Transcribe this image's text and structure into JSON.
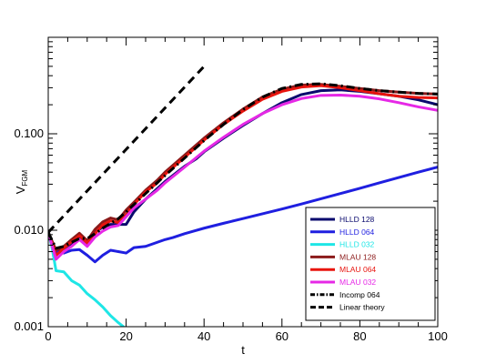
{
  "chart_data": {
    "type": "line",
    "xlabel": "t",
    "ylabel": "V",
    "ylabel_sub": "FGM",
    "x_scale": "linear",
    "y_scale": "log",
    "xlim": [
      0,
      100
    ],
    "ylim": [
      0.001,
      1.0
    ],
    "x_ticks": [
      0,
      20,
      40,
      60,
      80,
      100
    ],
    "x_tick_labels": [
      "0",
      "20",
      "40",
      "60",
      "80",
      "100"
    ],
    "y_ticks": [
      0.001,
      0.01,
      0.1
    ],
    "y_tick_labels": [
      "0.001",
      "0.010",
      "0.100"
    ],
    "grid": false,
    "legend_position": "lower-right",
    "series": [
      {
        "name": "HLLD 128",
        "color": "#0a0a6e",
        "dash": "solid",
        "width": 3,
        "x": [
          0,
          2,
          4,
          6,
          8,
          10,
          12,
          14,
          16,
          18,
          20,
          22,
          25,
          28,
          30,
          32,
          35,
          38,
          40,
          45,
          50,
          55,
          60,
          65,
          70,
          75,
          80,
          85,
          90,
          95,
          100
        ],
        "y": [
          0.0095,
          0.006,
          0.0062,
          0.0072,
          0.0082,
          0.0072,
          0.0095,
          0.0108,
          0.0115,
          0.0115,
          0.0115,
          0.0155,
          0.021,
          0.027,
          0.032,
          0.037,
          0.046,
          0.055,
          0.065,
          0.09,
          0.122,
          0.162,
          0.21,
          0.255,
          0.28,
          0.285,
          0.275,
          0.26,
          0.245,
          0.225,
          0.2
        ]
      },
      {
        "name": "HLLD 064",
        "color": "#1f1fe0",
        "dash": "solid",
        "width": 3,
        "x": [
          0,
          2,
          4,
          6,
          8,
          10,
          12,
          14,
          16,
          18,
          20,
          22,
          25,
          28,
          30,
          32,
          35,
          40,
          45,
          50,
          55,
          60,
          65,
          70,
          75,
          80,
          85,
          90,
          95,
          100
        ],
        "y": [
          0.0095,
          0.006,
          0.0058,
          0.0062,
          0.0063,
          0.0055,
          0.0047,
          0.0055,
          0.0062,
          0.006,
          0.0058,
          0.0066,
          0.0068,
          0.0075,
          0.008,
          0.0084,
          0.0092,
          0.0105,
          0.0118,
          0.0132,
          0.0148,
          0.0166,
          0.0187,
          0.0212,
          0.024,
          0.0272,
          0.031,
          0.0352,
          0.04,
          0.0452
        ]
      },
      {
        "name": "HLLD 032",
        "color": "#1ee6e6",
        "dash": "solid",
        "width": 3,
        "x": [
          0,
          1,
          2,
          4,
          6,
          8,
          10,
          12,
          14,
          16,
          18,
          20
        ],
        "y": [
          0.0095,
          0.0065,
          0.0038,
          0.0037,
          0.003,
          0.0027,
          0.0022,
          0.0019,
          0.0016,
          0.0013,
          0.0011,
          0.00095
        ]
      },
      {
        "name": "MLAU 128",
        "color": "#8b1a1a",
        "dash": "solid",
        "width": 3,
        "x": [
          0,
          2,
          4,
          6,
          8,
          10,
          12,
          14,
          16,
          18,
          20,
          22,
          25,
          28,
          30,
          35,
          40,
          45,
          50,
          55,
          60,
          65,
          70,
          75,
          80,
          85,
          90,
          95,
          100
        ],
        "y": [
          0.0095,
          0.0062,
          0.0068,
          0.008,
          0.0093,
          0.0078,
          0.0102,
          0.0122,
          0.0134,
          0.0128,
          0.0162,
          0.0195,
          0.026,
          0.033,
          0.04,
          0.06,
          0.09,
          0.13,
          0.18,
          0.24,
          0.29,
          0.32,
          0.325,
          0.31,
          0.295,
          0.28,
          0.27,
          0.262,
          0.258
        ]
      },
      {
        "name": "MLAU 064",
        "color": "#e8140e",
        "dash": "solid",
        "width": 3,
        "x": [
          0,
          2,
          4,
          6,
          8,
          10,
          12,
          14,
          16,
          18,
          20,
          22,
          25,
          28,
          30,
          35,
          40,
          45,
          50,
          55,
          60,
          65,
          70,
          75,
          80,
          85,
          90,
          95,
          100
        ],
        "y": [
          0.0095,
          0.0055,
          0.0065,
          0.0076,
          0.0088,
          0.0074,
          0.0092,
          0.0114,
          0.0125,
          0.012,
          0.0145,
          0.0185,
          0.025,
          0.031,
          0.038,
          0.057,
          0.086,
          0.125,
          0.172,
          0.228,
          0.275,
          0.305,
          0.315,
          0.3,
          0.28,
          0.26,
          0.245,
          0.238,
          0.235
        ]
      },
      {
        "name": "MLAU 032",
        "color": "#e628e6",
        "dash": "solid",
        "width": 3,
        "x": [
          0,
          2,
          4,
          6,
          8,
          10,
          12,
          14,
          16,
          18,
          20,
          22,
          25,
          28,
          30,
          35,
          40,
          45,
          50,
          55,
          60,
          65,
          70,
          75,
          80,
          85,
          90,
          95,
          100
        ],
        "y": [
          0.0095,
          0.005,
          0.006,
          0.0068,
          0.008,
          0.0068,
          0.0085,
          0.0098,
          0.0108,
          0.0112,
          0.0138,
          0.017,
          0.021,
          0.026,
          0.031,
          0.045,
          0.066,
          0.092,
          0.125,
          0.162,
          0.2,
          0.232,
          0.25,
          0.252,
          0.245,
          0.23,
          0.21,
          0.19,
          0.175
        ]
      },
      {
        "name": "Incomp 064",
        "color": "#000000",
        "dash": "dashdot",
        "width": 3,
        "x": [
          0,
          2,
          4,
          6,
          8,
          10,
          12,
          14,
          16,
          18,
          20,
          25,
          30,
          35,
          40,
          45,
          50,
          55,
          60,
          65,
          70,
          75,
          80,
          85,
          90,
          95,
          100
        ],
        "y": [
          0.0095,
          0.0065,
          0.0068,
          0.0075,
          0.0082,
          0.0082,
          0.0092,
          0.0105,
          0.0118,
          0.0132,
          0.0155,
          0.024,
          0.037,
          0.056,
          0.085,
          0.125,
          0.178,
          0.24,
          0.295,
          0.325,
          0.33,
          0.315,
          0.295,
          0.28,
          0.27,
          0.262,
          0.258
        ]
      },
      {
        "name": "Linear theory",
        "color": "#000000",
        "dash": "dash",
        "width": 3,
        "x": [
          0,
          40.5
        ],
        "y": [
          0.0095,
          0.525
        ]
      }
    ]
  }
}
